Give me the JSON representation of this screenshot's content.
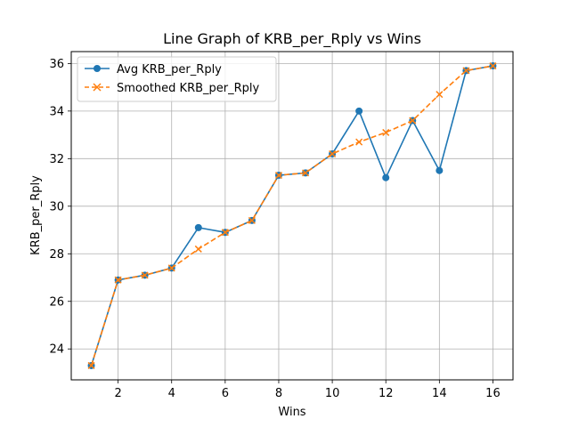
{
  "chart_data": {
    "type": "line",
    "title": "Line Graph of KRB_per_Rply vs Wins",
    "xlabel": "Wins",
    "ylabel": "KRB_per_Rply",
    "xlim": [
      0.25,
      16.75
    ],
    "ylim": [
      22.7,
      36.5
    ],
    "xticks": [
      2,
      4,
      6,
      8,
      10,
      12,
      14,
      16
    ],
    "yticks": [
      24,
      26,
      28,
      30,
      32,
      34,
      36
    ],
    "grid": true,
    "legend": "top-left",
    "x": [
      1,
      2,
      3,
      4,
      5,
      6,
      7,
      8,
      9,
      10,
      11,
      12,
      13,
      14,
      15,
      16
    ],
    "series": [
      {
        "name": "Avg KRB_per_Rply",
        "color": "#1f77b4",
        "marker": "circle",
        "linestyle": "solid",
        "values": [
          23.3,
          26.9,
          27.1,
          27.4,
          29.1,
          28.9,
          29.4,
          31.3,
          31.4,
          32.2,
          34.0,
          31.2,
          33.6,
          31.5,
          35.7,
          35.9
        ]
      },
      {
        "name": "Smoothed KRB_per_Rply",
        "color": "#ff7f0e",
        "marker": "x",
        "linestyle": "dashed",
        "values": [
          23.3,
          26.9,
          27.1,
          27.4,
          28.2,
          28.9,
          29.4,
          31.3,
          31.4,
          32.2,
          32.7,
          33.1,
          33.6,
          34.7,
          35.7,
          35.9
        ]
      }
    ]
  }
}
